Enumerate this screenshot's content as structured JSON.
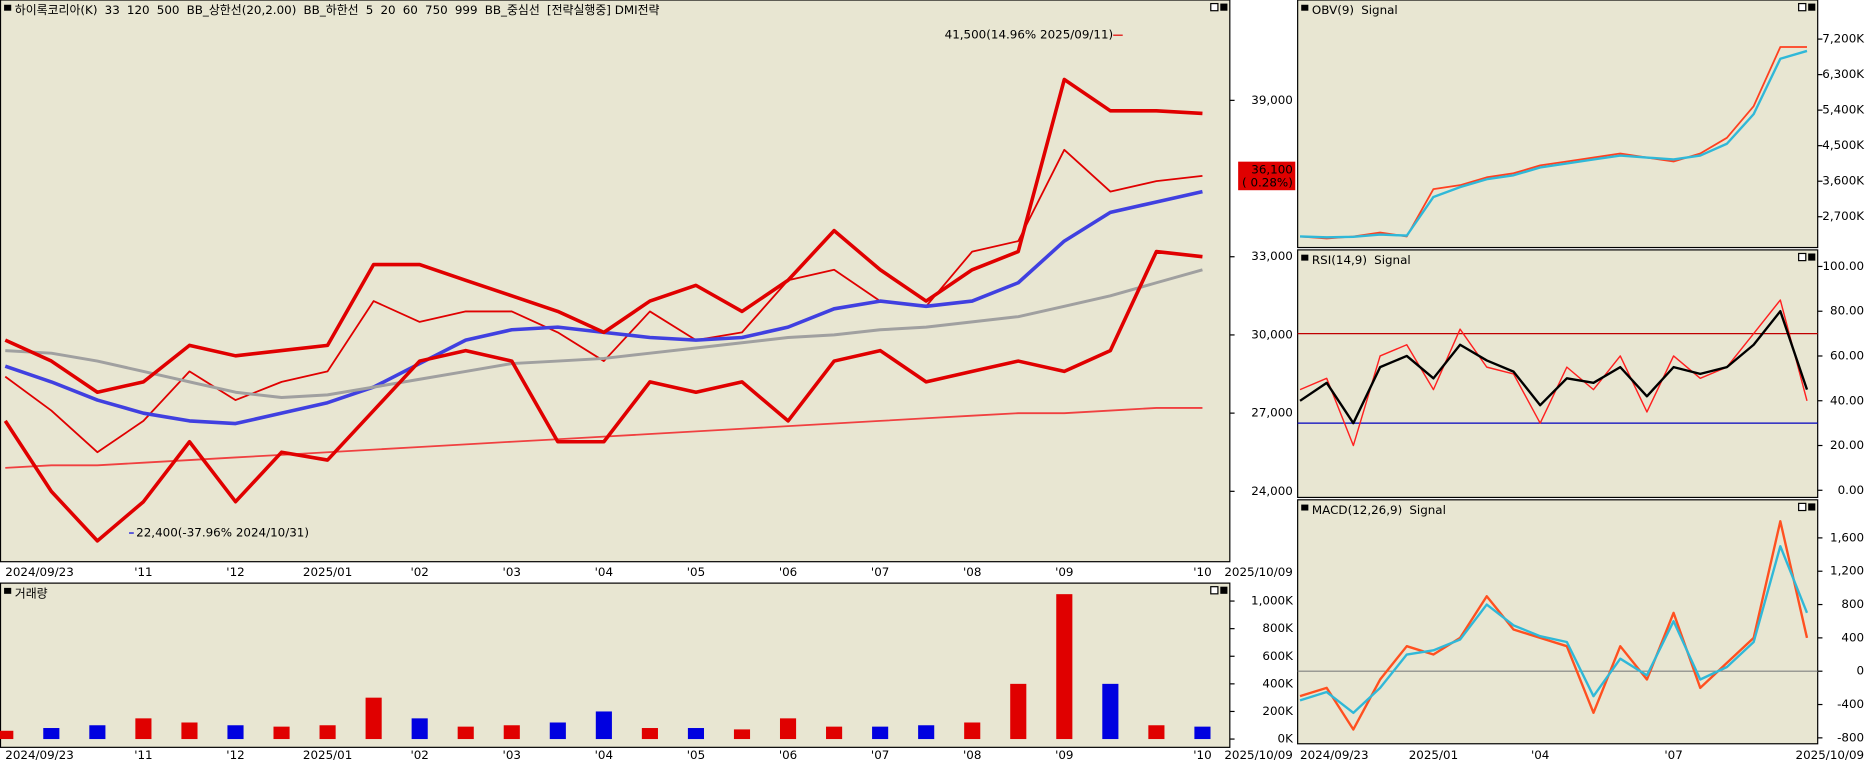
{
  "chart_data": [
    {
      "type": "line",
      "categories": [
        "2024/09/23",
        null,
        null,
        "'11",
        null,
        "'12",
        null,
        "2025/01",
        null,
        "'02",
        null,
        "'03",
        null,
        "'04",
        null,
        "'05",
        null,
        "'06",
        null,
        "'07",
        null,
        "'08",
        null,
        "'09",
        null,
        null,
        "'10"
      ],
      "end_label": "2025/10/09",
      "ylim": [
        21300,
        42850
      ],
      "yticks": [
        {
          "value": 24000,
          "label": "24,000"
        },
        {
          "value": 27000,
          "label": "27,000"
        },
        {
          "value": 30000,
          "label": "30,000"
        },
        {
          "value": 33000,
          "label": "33,000"
        },
        {
          "value": 39000,
          "label": "39,000"
        }
      ],
      "series": [
        {
          "name": "하이록코리아(K)",
          "color": "#e00000",
          "width": 1.5,
          "values": [
            28400,
            27100,
            25500,
            26700,
            28600,
            27500,
            28200,
            28600,
            31300,
            30500,
            30900,
            30900,
            30100,
            29000,
            30900,
            29800,
            30100,
            32100,
            32500,
            31300,
            31100,
            33200,
            33600,
            37100,
            35500,
            35900,
            36100
          ]
        },
        {
          "name": "33",
          "color": "#4040e0",
          "width": 3,
          "values": [
            28800,
            28200,
            27500,
            27000,
            26700,
            26600,
            27000,
            27400,
            28000,
            28900,
            29800,
            30200,
            30300,
            30100,
            29900,
            29800,
            29900,
            30300,
            31000,
            31300,
            31100,
            31300,
            32000,
            33600,
            34700,
            35100,
            35500
          ]
        },
        {
          "name": "120",
          "color": "#a0a0a0",
          "width": 2.5,
          "values": [
            29400,
            29300,
            29000,
            28600,
            28200,
            27800,
            27600,
            27700,
            28000,
            28300,
            28600,
            28900,
            29000,
            29100,
            29300,
            29500,
            29700,
            29900,
            30000,
            30200,
            30300,
            30500,
            30700,
            31100,
            31500,
            32000,
            32500
          ]
        },
        {
          "name": "500",
          "color": "#f04040",
          "width": 1.5,
          "values": [
            24900,
            25000,
            25000,
            25100,
            25200,
            25300,
            25400,
            25500,
            25600,
            25700,
            25800,
            25900,
            26000,
            26100,
            26200,
            26300,
            26400,
            26500,
            26600,
            26700,
            26800,
            26900,
            27000,
            27000,
            27100,
            27200,
            27200
          ]
        },
        {
          "name": "BB_상한선(20,2.00)",
          "color": "#e00000",
          "width": 3,
          "values": [
            29800,
            29000,
            27800,
            28200,
            29600,
            29200,
            29400,
            29600,
            32700,
            32700,
            32100,
            31500,
            30900,
            30100,
            31300,
            31900,
            30900,
            32100,
            34000,
            32500,
            31300,
            32500,
            33200,
            39800,
            38600,
            38600,
            38500
          ]
        },
        {
          "name": "BB_하한선",
          "color": "#e00000",
          "width": 3,
          "values": [
            26700,
            24000,
            22100,
            23600,
            25900,
            23600,
            25500,
            25200,
            27100,
            29000,
            29400,
            29000,
            25900,
            25900,
            28200,
            27800,
            28200,
            26700,
            29000,
            29400,
            28200,
            28600,
            29000,
            28600,
            29400,
            33200,
            33000
          ]
        }
      ],
      "legend_extra": [
        {
          "name": "5",
          "color": "#e00000"
        },
        {
          "name": "20",
          "color": "#d08000"
        },
        {
          "name": "60",
          "color": "#008000"
        },
        {
          "name": "750",
          "color": "#404040"
        },
        {
          "name": "999",
          "color": "#0060ff"
        },
        {
          "name": "BB_중심선",
          "color": "#008000"
        },
        {
          "name": "[전략실행중] DMI전략",
          "color": "#e00000"
        }
      ],
      "annotations": [
        {
          "value": 41500,
          "label": "41,500(14.96% 2025/09/11)",
          "color": "#e00000"
        },
        {
          "value": 22400,
          "label": "22,400(-37.96% 2024/10/31)",
          "color": "#0000e0"
        }
      ],
      "last": {
        "value": 36100,
        "label": "36,100",
        "change": "( 0.28%)"
      }
    },
    {
      "type": "bar",
      "categories": [
        "2024/09/23",
        null,
        null,
        "'11",
        null,
        "'12",
        null,
        "2025/01",
        null,
        "'02",
        null,
        "'03",
        null,
        "'04",
        null,
        "'05",
        null,
        "'06",
        null,
        "'07",
        null,
        "'08",
        null,
        "'09",
        null,
        null,
        "'10"
      ],
      "end_label": "2025/10/09",
      "ylim": [
        -60000,
        1130000
      ],
      "yticks": [
        {
          "value": 0,
          "label": "0K"
        },
        {
          "value": 200000,
          "label": "200K"
        },
        {
          "value": 400000,
          "label": "400K"
        },
        {
          "value": 600000,
          "label": "600K"
        },
        {
          "value": 800000,
          "label": "800K"
        },
        {
          "value": 1000000,
          "label": "1,000K"
        }
      ],
      "series": [
        {
          "name": "거래량",
          "colors": [
            "#e00000",
            "#0000e0",
            "#0000e0",
            "#e00000",
            "#e00000",
            "#0000e0",
            "#e00000",
            "#e00000",
            "#e00000",
            "#0000e0",
            "#e00000",
            "#e00000",
            "#0000e0",
            "#0000e0",
            "#e00000",
            "#0000e0",
            "#e00000",
            "#e00000",
            "#e00000",
            "#0000e0",
            "#0000e0",
            "#e00000",
            "#e00000",
            "#e00000",
            "#0000e0",
            "#e00000",
            "#0000e0"
          ],
          "values": [
            60000,
            80000,
            100000,
            150000,
            120000,
            100000,
            90000,
            100000,
            300000,
            150000,
            90000,
            100000,
            120000,
            200000,
            80000,
            80000,
            70000,
            150000,
            90000,
            90000,
            100000,
            120000,
            400000,
            1050000,
            400000,
            100000,
            90000
          ]
        }
      ]
    },
    {
      "type": "line",
      "ylim": [
        1920000,
        8190000
      ],
      "yticks": [
        {
          "value": 2700000,
          "label": "2,700K"
        },
        {
          "value": 3600000,
          "label": "3,600K"
        },
        {
          "value": 4500000,
          "label": "4,500K"
        },
        {
          "value": 5400000,
          "label": "5,400K"
        },
        {
          "value": 6300000,
          "label": "6,300K"
        },
        {
          "value": 7200000,
          "label": "7,200K"
        }
      ],
      "series": [
        {
          "name": "OBV(9)",
          "color": "#ff4020",
          "width": 1.5,
          "values": [
            2200000,
            2150000,
            2200000,
            2300000,
            2200000,
            3400000,
            3500000,
            3700000,
            3800000,
            4000000,
            4100000,
            4200000,
            4300000,
            4200000,
            4100000,
            4300000,
            4700000,
            5500000,
            7000000,
            7000000
          ]
        },
        {
          "name": "Signal",
          "color": "#30b8d8",
          "width": 2,
          "values": [
            2200000,
            2180000,
            2190000,
            2250000,
            2220000,
            3200000,
            3450000,
            3650000,
            3750000,
            3950000,
            4050000,
            4150000,
            4250000,
            4200000,
            4150000,
            4250000,
            4550000,
            5300000,
            6700000,
            6900000
          ]
        }
      ]
    },
    {
      "type": "line",
      "ylim": [
        -3.2,
        107.4
      ],
      "yticks": [
        {
          "value": 0,
          "label": "0.00"
        },
        {
          "value": 20,
          "label": "20.00"
        },
        {
          "value": 40,
          "label": "40.00"
        },
        {
          "value": 60,
          "label": "60.00"
        },
        {
          "value": 80,
          "label": "80.00"
        },
        {
          "value": 100,
          "label": "100.00"
        }
      ],
      "ref_lines": [
        {
          "value": 70,
          "color": "#c00000"
        },
        {
          "value": 30,
          "color": "#0000c0"
        }
      ],
      "series": [
        {
          "name": "RSI(14,9)",
          "color": "#ff2020",
          "width": 1.2,
          "values": [
            45,
            50,
            20,
            60,
            65,
            45,
            72,
            55,
            52,
            30,
            55,
            45,
            60,
            35,
            60,
            50,
            55,
            70,
            85,
            40
          ]
        },
        {
          "name": "Signal",
          "color": "#000000",
          "width": 2,
          "values": [
            40,
            48,
            30,
            55,
            60,
            50,
            65,
            58,
            53,
            38,
            50,
            48,
            55,
            42,
            55,
            52,
            55,
            65,
            80,
            45
          ]
        }
      ]
    },
    {
      "type": "line",
      "categories": [
        "2024/09/23",
        null,
        null,
        null,
        null,
        "2025/01",
        null,
        null,
        null,
        "'04",
        null,
        null,
        null,
        null,
        "'07",
        null,
        null,
        null,
        null,
        null
      ],
      "end_label": "2025/10/09",
      "ylim": [
        -871,
        2057
      ],
      "yticks": [
        -800,
        -400,
        0,
        400,
        800,
        {
          "value": 1200,
          "label": "1,200"
        },
        {
          "value": 1600,
          "label": "1,600"
        }
      ],
      "ref_lines": [
        {
          "value": 0,
          "color": "#808080"
        }
      ],
      "series": [
        {
          "name": "MACD(12,26,9)",
          "color": "#ff5020",
          "width": 2,
          "values": [
            -300,
            -200,
            -700,
            -100,
            300,
            200,
            400,
            900,
            500,
            400,
            300,
            -500,
            300,
            -100,
            700,
            -200,
            100,
            400,
            1800,
            400
          ]
        },
        {
          "name": "Signal",
          "color": "#30b8d8",
          "width": 2,
          "values": [
            -350,
            -250,
            -500,
            -200,
            200,
            250,
            380,
            800,
            550,
            420,
            350,
            -300,
            150,
            -50,
            600,
            -100,
            50,
            350,
            1500,
            700
          ]
        }
      ]
    }
  ]
}
